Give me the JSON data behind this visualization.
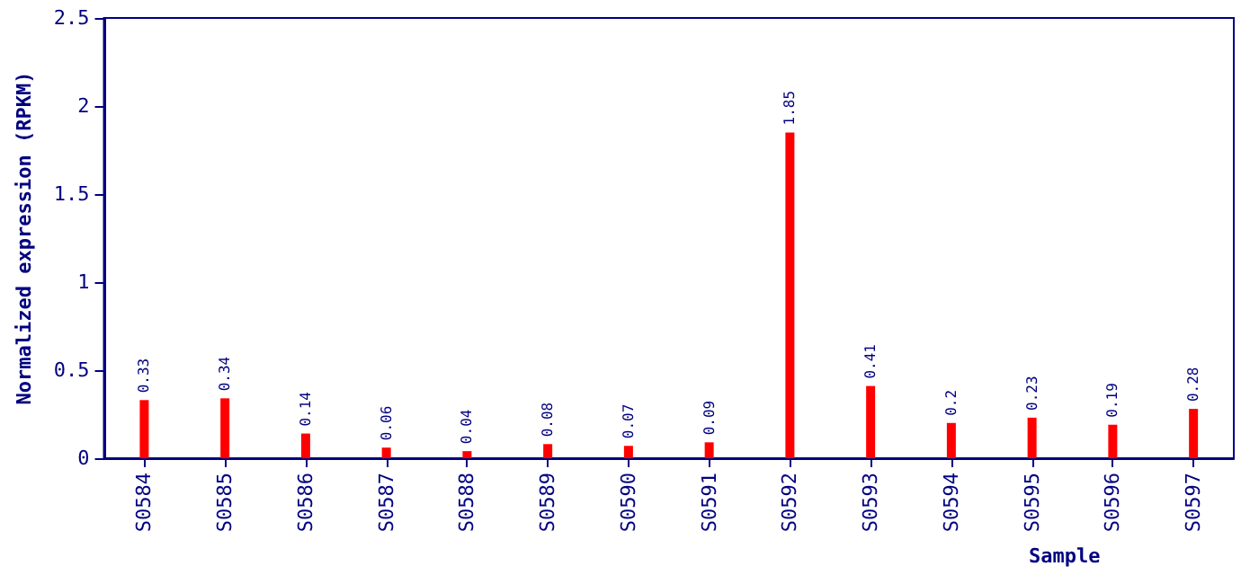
{
  "chart_data": {
    "type": "bar",
    "xlabel": "Sample",
    "ylabel": "Normalized expression (RPKM)",
    "categories": [
      "S0584",
      "S0585",
      "S0586",
      "S0587",
      "S0588",
      "S0589",
      "S0590",
      "S0591",
      "S0592",
      "S0593",
      "S0594",
      "S0595",
      "S0596",
      "S0597"
    ],
    "values": [
      0.33,
      0.34,
      0.14,
      0.06,
      0.04,
      0.08,
      0.07,
      0.09,
      1.85,
      0.41,
      0.2,
      0.23,
      0.19,
      0.28
    ],
    "color": "#ff0000",
    "ylim": [
      0,
      2.5
    ],
    "yticks": [
      0,
      0.5,
      1,
      1.5,
      2,
      2.5
    ],
    "grid": false,
    "data_labels": true
  }
}
